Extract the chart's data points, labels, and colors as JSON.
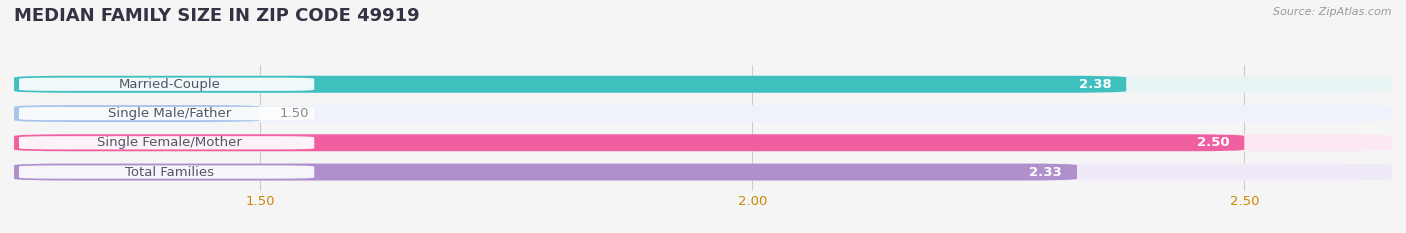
{
  "title": "MEDIAN FAMILY SIZE IN ZIP CODE 49919",
  "source": "Source: ZipAtlas.com",
  "categories": [
    "Married-Couple",
    "Single Male/Father",
    "Single Female/Mother",
    "Total Families"
  ],
  "values": [
    2.38,
    1.5,
    2.5,
    2.33
  ],
  "bar_colors": [
    "#40bfbf",
    "#a8c4ec",
    "#f060a0",
    "#b090cc"
  ],
  "bar_bg_colors": [
    "#e8f4f4",
    "#eef2fa",
    "#fce8f2",
    "#f0eaf8"
  ],
  "xlim_min": 1.25,
  "xlim_max": 2.65,
  "xticks": [
    1.5,
    2.0,
    2.5
  ],
  "xtick_labels": [
    "1.50",
    "2.00",
    "2.50"
  ],
  "bar_height": 0.58,
  "label_fontsize": 9.5,
  "value_fontsize": 9.5,
  "title_fontsize": 13,
  "background_color": "#f5f5f5",
  "grid_color": "#cccccc",
  "tick_color": "#cc8800",
  "title_color": "#333344",
  "source_color": "#999999",
  "label_text_color": "#555566",
  "value_color_white": "#ffffff",
  "value_color_dark": "#888888"
}
